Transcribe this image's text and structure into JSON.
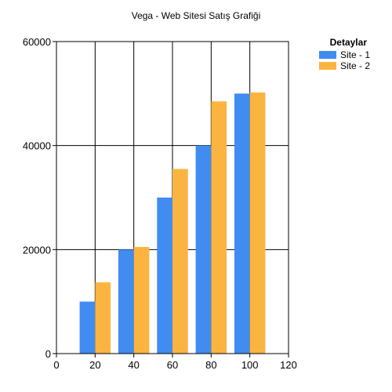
{
  "chart_data": {
    "type": "bar",
    "title": "Vega - Web Sitesi Satış Grafiği",
    "xlabel": "",
    "ylabel": "",
    "categories": [
      "20",
      "40",
      "60",
      "80",
      "100"
    ],
    "series": [
      {
        "name": "Site - 1",
        "color": "#418CF0",
        "values": [
          10000,
          20000,
          30000,
          40000,
          50000
        ]
      },
      {
        "name": "Site - 2",
        "color": "#FCB441",
        "values": [
          13700,
          20500,
          35500,
          48500,
          50200
        ]
      }
    ],
    "x_values": [
      20,
      40,
      60,
      80,
      100
    ],
    "xlim": [
      0,
      120
    ],
    "ylim": [
      0,
      60000
    ],
    "x_ticks": [
      "0",
      "20",
      "40",
      "60",
      "80",
      "100",
      "120"
    ],
    "y_ticks": [
      "0",
      "20000",
      "40000",
      "60000"
    ],
    "grid": true,
    "legend": {
      "title": "Detaylar",
      "placement": "top-right"
    }
  }
}
